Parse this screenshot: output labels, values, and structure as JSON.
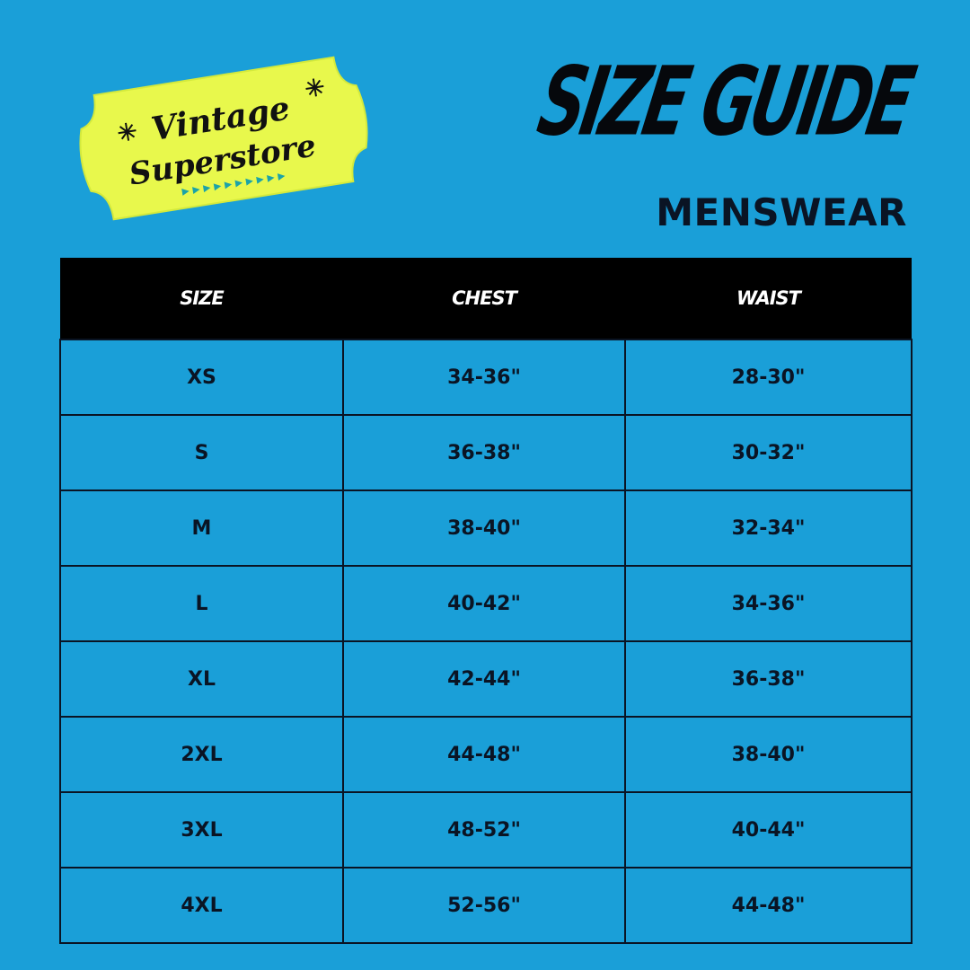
{
  "logo": {
    "text_line1": "Vintage",
    "text_line2": "Superstore",
    "badge_color": "#e8f84c",
    "accent_color": "#1ba3a8"
  },
  "header": {
    "title": "SIZE GUIDE",
    "subtitle": "MENSWEAR"
  },
  "colors": {
    "background": "#1a9fd8",
    "header_row": "#000000",
    "text": "#0a1424"
  },
  "table": {
    "columns": [
      "SIZE",
      "CHEST",
      "WAIST"
    ],
    "rows": [
      [
        "XS",
        "34-36\"",
        "28-30\""
      ],
      [
        "S",
        "36-38\"",
        "30-32\""
      ],
      [
        "M",
        "38-40\"",
        "32-34\""
      ],
      [
        "L",
        "40-42\"",
        "34-36\""
      ],
      [
        "XL",
        "42-44\"",
        "36-38\""
      ],
      [
        "2XL",
        "44-48\"",
        "38-40\""
      ],
      [
        "3XL",
        "48-52\"",
        "40-44\""
      ],
      [
        "4XL",
        "52-56\"",
        "44-48\""
      ]
    ]
  }
}
